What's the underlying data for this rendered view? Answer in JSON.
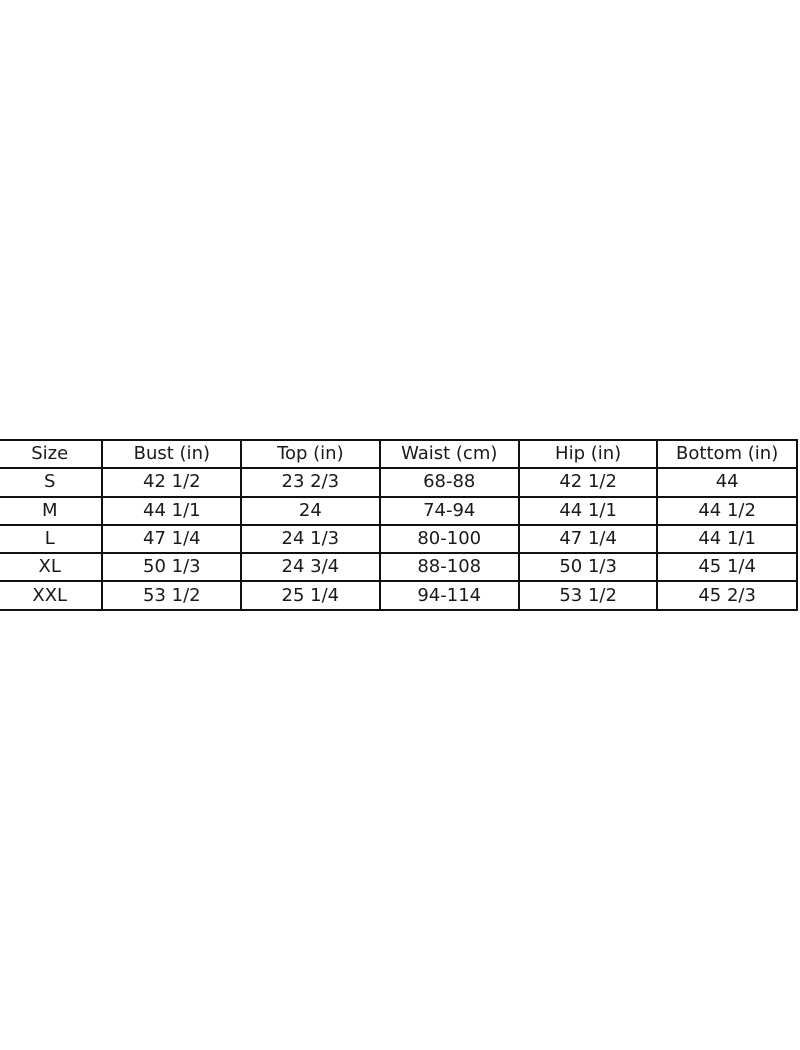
{
  "table": {
    "headers": [
      "Size",
      "Bust (in)",
      "Top (in)",
      "Waist (cm)",
      "Hip (in)",
      "Bottom (in)"
    ],
    "rows": [
      [
        "S",
        "42 1/2",
        "23 2/3",
        "68-88",
        "42 1/2",
        "44"
      ],
      [
        "M",
        "44 1/1",
        "24",
        "74-94",
        "44 1/1",
        "44 1/2"
      ],
      [
        "L",
        "47 1/4",
        "24 1/3",
        "80-100",
        "47 1/4",
        "44 1/1"
      ],
      [
        "XL",
        "50 1/3",
        "24 3/4",
        "88-108",
        "50 1/3",
        "45 1/4"
      ],
      [
        "XXL",
        "53 1/2",
        "25 1/4",
        "94-114",
        "53 1/2",
        "45 2/3"
      ]
    ]
  }
}
